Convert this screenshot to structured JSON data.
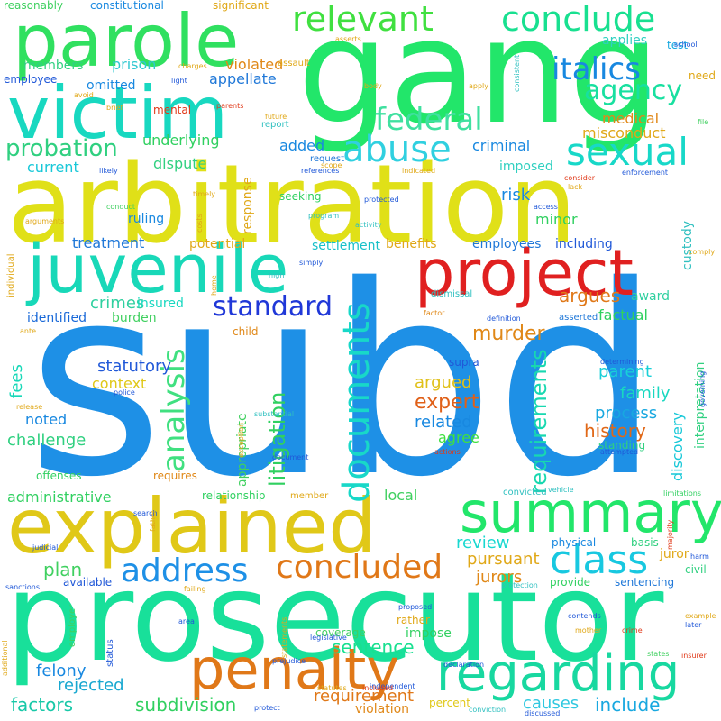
{
  "words": [
    {
      "text": "subd",
      "color": "#1e90e6",
      "rot": false
    },
    {
      "text": "prosecutor",
      "color": "#18e09a",
      "rot": false
    },
    {
      "text": "arbitration",
      "color": "#e0e018",
      "rot": false
    },
    {
      "text": "gang",
      "color": "#22e66a",
      "rot": false
    },
    {
      "text": "juvenile",
      "color": "#18d8b8",
      "rot": false
    },
    {
      "text": "explained",
      "color": "#e0c818",
      "rot": false
    },
    {
      "text": "victim",
      "color": "#18d8c0",
      "rot": false
    },
    {
      "text": "parole",
      "color": "#30e060",
      "rot": false
    },
    {
      "text": "project",
      "color": "#e02020",
      "rot": false
    },
    {
      "text": "summary",
      "color": "#22e66a",
      "rot": false
    },
    {
      "text": "penalty",
      "color": "#e07818",
      "rot": false
    },
    {
      "text": "regarding",
      "color": "#18d8a0",
      "rot": false
    },
    {
      "text": "relevant",
      "color": "#40e040",
      "rot": false
    },
    {
      "text": "conclude",
      "color": "#18e090",
      "rot": false
    },
    {
      "text": "abuse",
      "color": "#30d0e0",
      "rot": false
    },
    {
      "text": "sexual",
      "color": "#18d8c8",
      "rot": false
    },
    {
      "text": "class",
      "color": "#18c8e0",
      "rot": false
    },
    {
      "text": "concluded",
      "color": "#e07818",
      "rot": false
    },
    {
      "text": "address",
      "color": "#1e90e6",
      "rot": false
    },
    {
      "text": "italics",
      "color": "#1888e0",
      "rot": false
    },
    {
      "text": "federal",
      "color": "#40e0a0",
      "rot": false
    },
    {
      "text": "agency",
      "color": "#18e0a0",
      "rot": false
    },
    {
      "text": "standard",
      "color": "#2038d8",
      "rot": false
    },
    {
      "text": "probation",
      "color": "#30d080",
      "rot": false
    },
    {
      "text": "documents",
      "color": "#18d8c8",
      "rot": true
    },
    {
      "text": "analysis",
      "color": "#40e080",
      "rot": true
    },
    {
      "text": "requirements",
      "color": "#18d8b0",
      "rot": true
    },
    {
      "text": "litigation",
      "color": "#30d060",
      "rot": true
    },
    {
      "text": "expert",
      "color": "#e06018",
      "rot": false
    },
    {
      "text": "murder",
      "color": "#e08818",
      "rot": false
    },
    {
      "text": "history",
      "color": "#e06818",
      "rot": false
    },
    {
      "text": "sentence",
      "color": "#18e090",
      "rot": false
    },
    {
      "text": "subdivision",
      "color": "#30d060",
      "rot": false
    },
    {
      "text": "factors",
      "color": "#18c8a8",
      "rot": false
    },
    {
      "text": "requirement",
      "color": "#e07818",
      "rot": false
    },
    {
      "text": "include",
      "color": "#18a8e0",
      "rot": false
    },
    {
      "text": "causes",
      "color": "#30c8e0",
      "rot": false
    },
    {
      "text": "plan",
      "color": "#40d060",
      "rot": false
    },
    {
      "text": "jurors",
      "color": "#e08818",
      "rot": false
    },
    {
      "text": "felony",
      "color": "#1888e0",
      "rot": false
    },
    {
      "text": "rejected",
      "color": "#18a8d0",
      "rot": false
    },
    {
      "text": "review",
      "color": "#18d8d0",
      "rot": false
    },
    {
      "text": "pursuant",
      "color": "#e0a818",
      "rot": false
    },
    {
      "text": "process",
      "color": "#18a8e0",
      "rot": false
    },
    {
      "text": "family",
      "color": "#18d8c0",
      "rot": false
    },
    {
      "text": "related",
      "color": "#1888e0",
      "rot": false
    },
    {
      "text": "agree",
      "color": "#40e040",
      "rot": false
    },
    {
      "text": "argued",
      "color": "#e0c018",
      "rot": false
    },
    {
      "text": "parent",
      "color": "#18d0d8",
      "rot": false
    },
    {
      "text": "statutory",
      "color": "#2058d8",
      "rot": false
    },
    {
      "text": "context",
      "color": "#e0c818",
      "rot": false
    },
    {
      "text": "challenge",
      "color": "#30d080",
      "rot": false
    },
    {
      "text": "fees",
      "color": "#18d8b8",
      "rot": false
    },
    {
      "text": "noted",
      "color": "#1888e0",
      "rot": false
    },
    {
      "text": "crimes",
      "color": "#30d0a0",
      "rot": false
    },
    {
      "text": "identified",
      "color": "#1868d8",
      "rot": false
    },
    {
      "text": "burden",
      "color": "#40d060",
      "rot": false
    },
    {
      "text": "insured",
      "color": "#18d8c0",
      "rot": false
    },
    {
      "text": "argues",
      "color": "#e07818",
      "rot": false
    },
    {
      "text": "factual",
      "color": "#30d060",
      "rot": false
    },
    {
      "text": "award",
      "color": "#30d0a0",
      "rot": false
    },
    {
      "text": "treatment",
      "color": "#2078d8",
      "rot": false
    },
    {
      "text": "employees",
      "color": "#2078d8",
      "rot": false
    },
    {
      "text": "including",
      "color": "#2058d8",
      "rot": false
    },
    {
      "text": "benefits",
      "color": "#e0a818",
      "rot": false
    },
    {
      "text": "settlement",
      "color": "#18c0c8",
      "rot": false
    },
    {
      "text": "risk",
      "color": "#1888e0",
      "rot": false
    },
    {
      "text": "minor",
      "color": "#30d060",
      "rot": false
    },
    {
      "text": "criminal",
      "color": "#1888e0",
      "rot": false
    },
    {
      "text": "imposed",
      "color": "#30d0c0",
      "rot": false
    },
    {
      "text": "misconduct",
      "color": "#e0a818",
      "rot": false
    },
    {
      "text": "medical",
      "color": "#e08818",
      "rot": false
    },
    {
      "text": "added",
      "color": "#1888e0",
      "rot": false
    },
    {
      "text": "underlying",
      "color": "#30d060",
      "rot": false
    },
    {
      "text": "current",
      "color": "#18c8d8",
      "rot": false
    },
    {
      "text": "dispute",
      "color": "#30d080",
      "rot": false
    },
    {
      "text": "ruling",
      "color": "#1888e0",
      "rot": false
    },
    {
      "text": "seeking",
      "color": "#30d060",
      "rot": false
    },
    {
      "text": "prison",
      "color": "#30c8d0",
      "rot": false
    },
    {
      "text": "violated",
      "color": "#e08818",
      "rot": false
    },
    {
      "text": "omitted",
      "color": "#1888e0",
      "rot": false
    },
    {
      "text": "members",
      "color": "#30d080",
      "rot": false
    },
    {
      "text": "appellate",
      "color": "#2078d8",
      "rot": false
    },
    {
      "text": "applies",
      "color": "#30d0c0",
      "rot": false
    },
    {
      "text": "employee",
      "color": "#2058d8",
      "rot": false
    },
    {
      "text": "reasonably",
      "color": "#40d060",
      "rot": false
    },
    {
      "text": "constitutional",
      "color": "#1888e0",
      "rot": false
    },
    {
      "text": "significant",
      "color": "#e0a818",
      "rot": false
    },
    {
      "text": "test",
      "color": "#18a8e0",
      "rot": false
    },
    {
      "text": "need",
      "color": "#e0a818",
      "rot": false
    },
    {
      "text": "assault",
      "color": "#e0a818",
      "rot": false
    },
    {
      "text": "administrative",
      "color": "#30d060",
      "rot": false
    },
    {
      "text": "relationship",
      "color": "#30d060",
      "rot": false
    },
    {
      "text": "local",
      "color": "#40d060",
      "rot": false
    },
    {
      "text": "convicted",
      "color": "#30c0c0",
      "rot": false
    },
    {
      "text": "juror",
      "color": "#e0a818",
      "rot": false
    },
    {
      "text": "physical",
      "color": "#1888e0",
      "rot": false
    },
    {
      "text": "basis",
      "color": "#30d080",
      "rot": false
    },
    {
      "text": "civil",
      "color": "#30d080",
      "rot": false
    },
    {
      "text": "provide",
      "color": "#30d060",
      "rot": false
    },
    {
      "text": "sentencing",
      "color": "#2078d8",
      "rot": false
    },
    {
      "text": "available",
      "color": "#2058d8",
      "rot": false
    },
    {
      "text": "coverage",
      "color": "#40d060",
      "rot": false
    },
    {
      "text": "impose",
      "color": "#30d060",
      "rot": false
    },
    {
      "text": "rather",
      "color": "#e0a818",
      "rot": false
    },
    {
      "text": "percent",
      "color": "#e0c818",
      "rot": false
    },
    {
      "text": "violation",
      "color": "#e08818",
      "rot": false
    },
    {
      "text": "standing",
      "color": "#30d080",
      "rot": false
    },
    {
      "text": "discovery",
      "color": "#18c8d8",
      "rot": true
    },
    {
      "text": "interpretation",
      "color": "#30d080",
      "rot": true
    },
    {
      "text": "custody",
      "color": "#30c0c0",
      "rot": true
    },
    {
      "text": "appropriate",
      "color": "#40d060",
      "rot": true
    },
    {
      "text": "response",
      "color": "#e0a818",
      "rot": true
    },
    {
      "text": "offenses",
      "color": "#30d060",
      "rot": false
    },
    {
      "text": "requires",
      "color": "#e08818",
      "rot": false
    },
    {
      "text": "potential",
      "color": "#e0a818",
      "rot": false
    },
    {
      "text": "child",
      "color": "#e08818",
      "rot": false
    },
    {
      "text": "dismissal",
      "color": "#30c0c0",
      "rot": false
    },
    {
      "text": "asserted",
      "color": "#2078d8",
      "rot": false
    },
    {
      "text": "supra",
      "color": "#2058d8",
      "rot": false
    },
    {
      "text": "mental",
      "color": "#e03818",
      "rot": false
    },
    {
      "text": "report",
      "color": "#30c0c0",
      "rot": false
    },
    {
      "text": "request",
      "color": "#2078d8",
      "rot": false
    },
    {
      "text": "references",
      "color": "#2058d8",
      "rot": false
    },
    {
      "text": "indicated",
      "color": "#e0a818",
      "rot": false
    },
    {
      "text": "protected",
      "color": "#2058d8",
      "rot": false
    },
    {
      "text": "activity",
      "color": "#30c0c0",
      "rot": false
    },
    {
      "text": "program",
      "color": "#30c0c0",
      "rot": false
    },
    {
      "text": "access",
      "color": "#2058d8",
      "rot": false
    },
    {
      "text": "enforcement",
      "color": "#2058d8",
      "rot": false
    },
    {
      "text": "consider",
      "color": "#e03818",
      "rot": false
    },
    {
      "text": "lack",
      "color": "#e0a818",
      "rot": false
    },
    {
      "text": "file",
      "color": "#40d060",
      "rot": false
    },
    {
      "text": "school",
      "color": "#2058d8",
      "rot": false
    },
    {
      "text": "asserts",
      "color": "#e0a818",
      "rot": false
    },
    {
      "text": "charges",
      "color": "#e0a818",
      "rot": false
    },
    {
      "text": "light",
      "color": "#2058d8",
      "rot": false
    },
    {
      "text": "body",
      "color": "#e0a818",
      "rot": false
    },
    {
      "text": "avoid",
      "color": "#e0a818",
      "rot": false
    },
    {
      "text": "brief",
      "color": "#e0a818",
      "rot": false
    },
    {
      "text": "future",
      "color": "#e0a818",
      "rot": false
    },
    {
      "text": "likely",
      "color": "#2058d8",
      "rot": false
    },
    {
      "text": "scope",
      "color": "#e0a818",
      "rot": false
    },
    {
      "text": "timely",
      "color": "#e0a818",
      "rot": false
    },
    {
      "text": "conduct",
      "color": "#40d060",
      "rot": false
    },
    {
      "text": "arguments",
      "color": "#e0a818",
      "rot": false
    },
    {
      "text": "comply",
      "color": "#e0a818",
      "rot": false
    },
    {
      "text": "high",
      "color": "#30c0c0",
      "rot": false
    },
    {
      "text": "factor",
      "color": "#e08818",
      "rot": false
    },
    {
      "text": "definition",
      "color": "#2058d8",
      "rot": false
    },
    {
      "text": "police",
      "color": "#2058d8",
      "rot": false
    },
    {
      "text": "release",
      "color": "#e0a818",
      "rot": false
    },
    {
      "text": "ante",
      "color": "#e0a818",
      "rot": false
    },
    {
      "text": "determining",
      "color": "#2058d8",
      "rot": false
    },
    {
      "text": "substantial",
      "color": "#30c0c0",
      "rot": false
    },
    {
      "text": "document",
      "color": "#2058d8",
      "rot": false
    },
    {
      "text": "actions",
      "color": "#e03818",
      "rot": false
    },
    {
      "text": "attempted",
      "color": "#2058d8",
      "rot": false
    },
    {
      "text": "member",
      "color": "#e0a818",
      "rot": false
    },
    {
      "text": "search",
      "color": "#2058d8",
      "rot": false
    },
    {
      "text": "vehicle",
      "color": "#30c0c0",
      "rot": false
    },
    {
      "text": "limitations",
      "color": "#30d060",
      "rot": false
    },
    {
      "text": "judicial",
      "color": "#2058d8",
      "rot": false
    },
    {
      "text": "sanctions",
      "color": "#2058d8",
      "rot": false
    },
    {
      "text": "failing",
      "color": "#e0a818",
      "rot": false
    },
    {
      "text": "protection",
      "color": "#30c0c0",
      "rot": false
    },
    {
      "text": "area",
      "color": "#2058d8",
      "rot": false
    },
    {
      "text": "mother",
      "color": "#e0a818",
      "rot": false
    },
    {
      "text": "crime",
      "color": "#e03818",
      "rot": false
    },
    {
      "text": "proposed",
      "color": "#2058d8",
      "rot": false
    },
    {
      "text": "legislative",
      "color": "#2058d8",
      "rot": false
    },
    {
      "text": "contends",
      "color": "#2058d8",
      "rot": false
    },
    {
      "text": "states",
      "color": "#40d060",
      "rot": false
    },
    {
      "text": "insurer",
      "color": "#e03818",
      "rot": false
    },
    {
      "text": "later",
      "color": "#2058d8",
      "rot": false
    },
    {
      "text": "example",
      "color": "#e0a818",
      "rot": false
    },
    {
      "text": "declaration",
      "color": "#2058d8",
      "rot": false
    },
    {
      "text": "prejudice",
      "color": "#2058d8",
      "rot": false
    },
    {
      "text": "statutes",
      "color": "#e0a818",
      "rot": false
    },
    {
      "text": "independent",
      "color": "#2058d8",
      "rot": false
    },
    {
      "text": "protect",
      "color": "#2058d8",
      "rot": false
    },
    {
      "text": "conviction",
      "color": "#30c0c0",
      "rot": false
    },
    {
      "text": "discussed",
      "color": "#2058d8",
      "rot": false
    },
    {
      "text": "included",
      "color": "#e03818",
      "rot": false
    },
    {
      "text": "status",
      "color": "#2058d8",
      "rot": true
    },
    {
      "text": "statements",
      "color": "#e0a818",
      "rot": true
    },
    {
      "text": "additional",
      "color": "#e0a818",
      "rot": true
    },
    {
      "text": "employer",
      "color": "#40d060",
      "rot": true
    },
    {
      "text": "individual",
      "color": "#e0a818",
      "rot": true
    },
    {
      "text": "father",
      "color": "#e0a818",
      "rot": true
    },
    {
      "text": "majority",
      "color": "#e03818",
      "rot": true
    },
    {
      "text": "harm",
      "color": "#2058d8",
      "rot": false
    },
    {
      "text": "governing",
      "color": "#2058d8",
      "rot": true
    },
    {
      "text": "consistent",
      "color": "#30c0c0",
      "rot": true
    },
    {
      "text": "apply",
      "color": "#e0a818",
      "rot": false
    },
    {
      "text": "parents",
      "color": "#e03818",
      "rot": false
    },
    {
      "text": "costs",
      "color": "#e0a818",
      "rot": true
    },
    {
      "text": "home",
      "color": "#e0a818",
      "rot": true
    },
    {
      "text": "simply",
      "color": "#2058d8",
      "rot": false
    },
    {
      "text": "exception",
      "color": "#e0a818",
      "rot": true
    }
  ]
}
